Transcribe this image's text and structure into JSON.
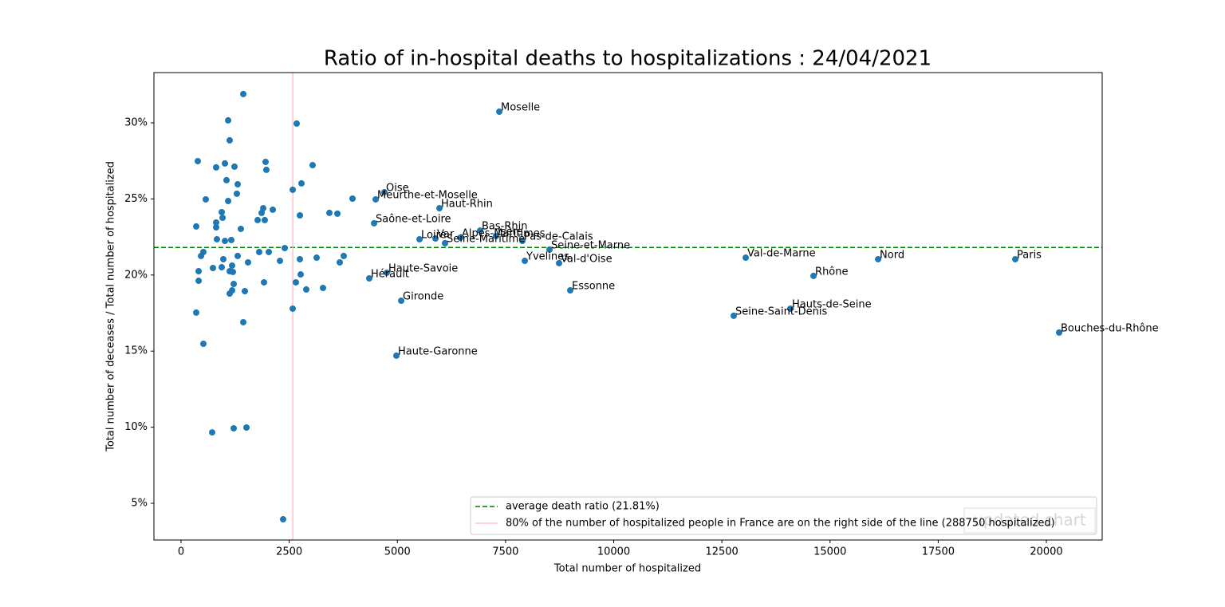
{
  "chart_data": {
    "type": "scatter",
    "title": "Ratio of in-hospital deaths to hospitalizations : 24/04/2021",
    "x_label": "Total number of hospitalized",
    "y_label": "Total number of deceases / Total number of hospitalized",
    "xlim": [
      -627,
      21290
    ],
    "ylim": [
      2.59,
      33.3
    ],
    "xticks": [
      0,
      2500,
      5000,
      7500,
      10000,
      12500,
      15000,
      17500,
      20000
    ],
    "yticks": [
      {
        "value": 5,
        "label": "5%"
      },
      {
        "value": 10,
        "label": "10%"
      },
      {
        "value": 15,
        "label": "15%"
      },
      {
        "value": 20,
        "label": "20%"
      },
      {
        "value": 25,
        "label": "25%"
      },
      {
        "value": 30,
        "label": "30%"
      }
    ],
    "color": "#1f77b4",
    "legend_position": "lower right",
    "watermark": "updated chart",
    "reference_lines": [
      {
        "orientation": "horizontal",
        "value": 21.81,
        "color": "green",
        "style": "dashed",
        "label": "average death ratio (21.81%)"
      },
      {
        "orientation": "vertical",
        "value": 2581,
        "color": "pink",
        "style": "solid",
        "label": "80% of the number of hospitalized people in France are on the right side of the line (288750 hospitalized)"
      }
    ],
    "x": [
      7355,
      4700,
      4498,
      5972,
      4461,
      6912,
      5512,
      5880,
      6452,
      6101,
      7281,
      7889,
      8516,
      7945,
      8737,
      4756,
      4350,
      5088,
      8995,
      4977,
      13051,
      16111,
      19281,
      14618,
      14083,
      12774,
      20295,
      1438,
      1088,
      2673,
      1124,
      387,
      1954,
      3041,
      1014,
      811,
      1235,
      1972,
      1051,
      2783,
      1309,
      2581,
      1290,
      3963,
      571,
      1088,
      1899,
      2120,
      1862,
      940,
      3429,
      3613,
      2747,
      959,
      1770,
      1935,
      811,
      811,
      350,
      1382,
      829,
      1161,
      1014,
      2396,
      2028,
      1806,
      516,
      461,
      1309,
      3760,
      977,
      2747,
      3134,
      3668,
      1548,
      2286,
      737,
      940,
      1180,
      1124,
      406,
      1198,
      2765,
      406,
      1917,
      2654,
      1217,
      3281,
      2894,
      1180,
      1475,
      1124,
      2581,
      350,
      1438,
      516,
      719,
      1217,
      1512,
      2359
    ],
    "values": [
      30.73,
      25.44,
      24.97,
      24.39,
      23.4,
      22.92,
      22.35,
      22.4,
      22.45,
      22.09,
      22.56,
      22.24,
      21.67,
      20.93,
      20.78,
      20.15,
      19.78,
      18.31,
      18.99,
      14.7,
      21.14,
      21.04,
      21.04,
      19.94,
      17.79,
      17.32,
      16.22,
      31.89,
      30.16,
      29.95,
      28.85,
      27.48,
      27.43,
      27.22,
      27.33,
      27.07,
      27.12,
      26.91,
      26.23,
      26.02,
      25.96,
      25.6,
      25.34,
      25.02,
      24.97,
      24.86,
      24.39,
      24.29,
      24.08,
      24.13,
      24.08,
      24.03,
      23.92,
      23.76,
      23.61,
      23.61,
      23.45,
      23.13,
      23.19,
      23.03,
      22.35,
      22.3,
      22.24,
      21.77,
      21.51,
      21.51,
      21.51,
      21.25,
      21.25,
      21.25,
      21.04,
      21.04,
      21.14,
      20.83,
      20.83,
      20.93,
      20.46,
      20.51,
      20.62,
      20.25,
      20.25,
      20.2,
      20.04,
      19.62,
      19.52,
      19.52,
      19.41,
      19.15,
      19.05,
      18.99,
      18.94,
      18.78,
      17.79,
      17.53,
      16.9,
      15.48,
      9.66,
      9.93,
      9.98,
      3.95
    ],
    "labels": [
      "Moselle",
      "Oise",
      "Meurthe-et-Moselle",
      "Haut-Rhin",
      "Saône-et-Loire",
      "Bas-Rhin",
      "Loire",
      "Var",
      "Alpes-Maritimes",
      "Seine-Maritime",
      "Isère",
      "Pas-de-Calais",
      "Seine-et-Marne",
      "Yvelines",
      "Val-d'Oise",
      "Haute-Savoie",
      "Hérault",
      "Gironde",
      "Essonne",
      "Haute-Garonne",
      "Val-de-Marne",
      "Nord",
      "Paris",
      "Rhône",
      "Hauts-de-Seine",
      "Seine-Saint-Denis",
      "Bouches-du-Rhône",
      null,
      null,
      null,
      null,
      null,
      null,
      null,
      null,
      null,
      null,
      null,
      null,
      null,
      null,
      null,
      null,
      null,
      null,
      null,
      null,
      null,
      null,
      null,
      null,
      null,
      null,
      null,
      null,
      null,
      null,
      null,
      null,
      null,
      null,
      null,
      null,
      null,
      null,
      null,
      null,
      null,
      null,
      null,
      null,
      null,
      null,
      null,
      null,
      null,
      null,
      null,
      null,
      null,
      null,
      null,
      null,
      null,
      null,
      null,
      null,
      null,
      null,
      null,
      null,
      null,
      null,
      null,
      null,
      null,
      null,
      null,
      null,
      null,
      null
    ]
  }
}
